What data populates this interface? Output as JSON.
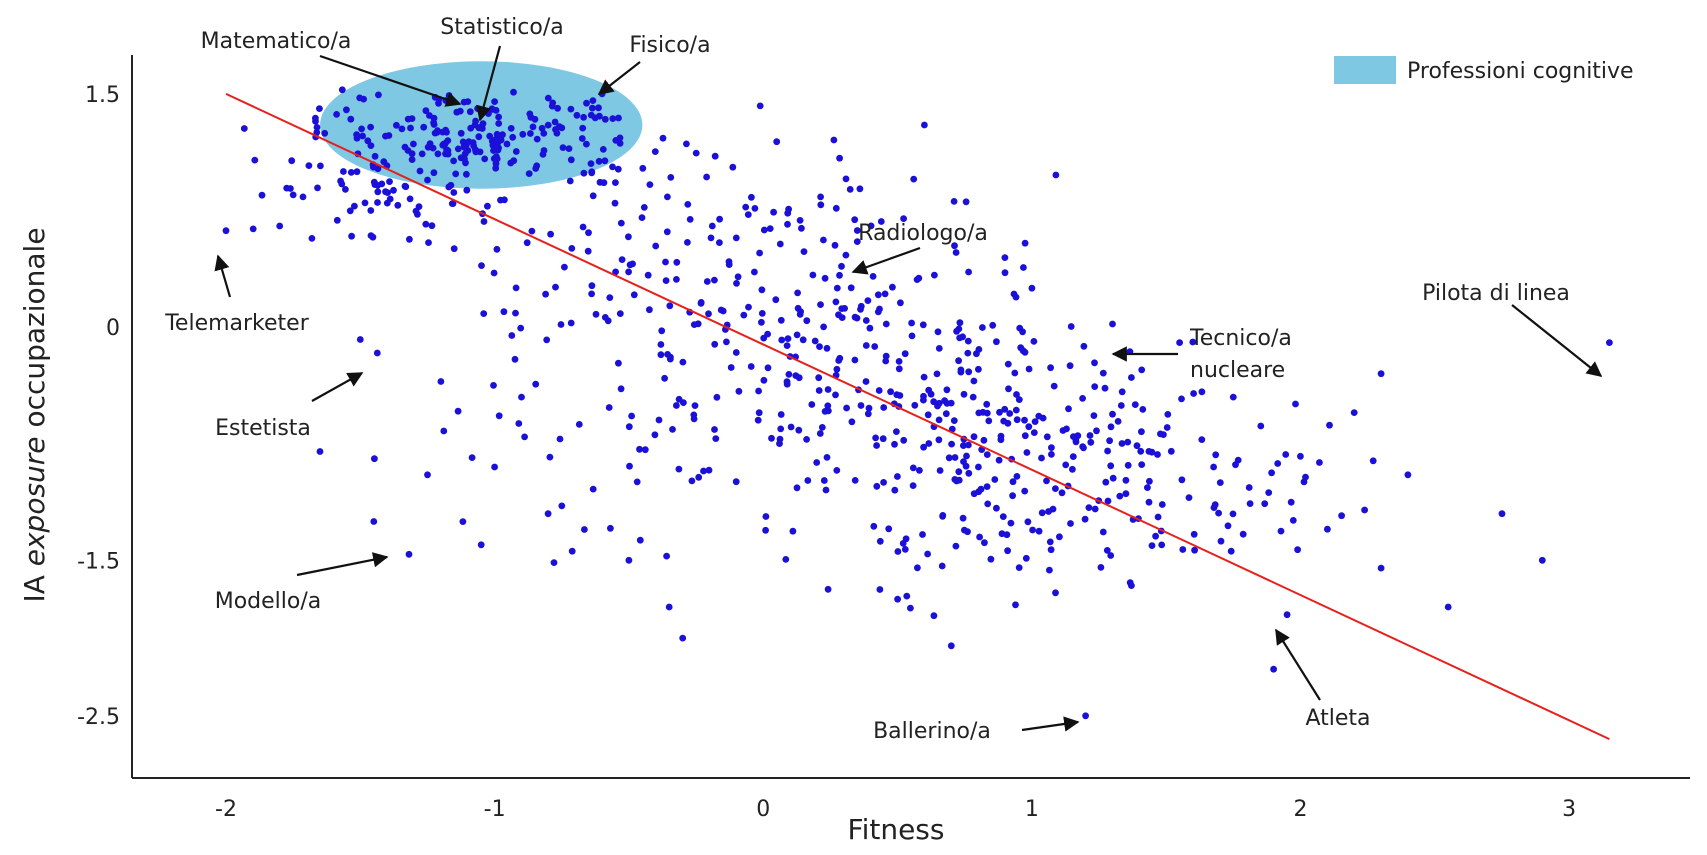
{
  "chart_data": {
    "type": "scatter",
    "title": "",
    "xlabel": "Fitness",
    "ylabel_prefix": "IA ",
    "ylabel_italic": "exposure",
    "ylabel_suffix": " occupazionale",
    "xlim": [
      -2.35,
      3.45
    ],
    "ylim": [
      -2.9,
      1.75
    ],
    "xticks": [
      -2,
      -1,
      0,
      1,
      2,
      3
    ],
    "xtick_labels": [
      "-2",
      "-1",
      "0",
      "1",
      "2",
      "3"
    ],
    "yticks": [
      1.5,
      0,
      -1.5,
      -2.5
    ],
    "ytick_labels": [
      "1.5",
      "0",
      "-1.5",
      "-2.5"
    ],
    "grid": false,
    "legend": {
      "position": "top-right",
      "entries": [
        {
          "label": "Professioni cognitive",
          "color": "#7ec8e3"
        }
      ]
    },
    "colors": {
      "points": "#1a10d8",
      "trend_line": "#e8201c",
      "region": "#7ec8e3",
      "axes": "#222222",
      "arrows": "#111111"
    },
    "highlight_region": {
      "label": "Professioni cognitive",
      "center": [
        -1.05,
        1.3
      ],
      "radius_x": 0.6,
      "radius_y": 0.41
    },
    "trend_line": {
      "x": [
        -2.0,
        3.15
      ],
      "y": [
        1.5,
        -2.65
      ]
    },
    "annotations": [
      {
        "text": "Matematico/a",
        "point": [
          -1.1,
          1.45
        ]
      },
      {
        "text": "Statistico/a",
        "point": [
          -1.0,
          1.45
        ]
      },
      {
        "text": "Fisico/a",
        "point": [
          -0.6,
          1.5
        ]
      },
      {
        "text": "Telemarketer",
        "point": [
          -2.0,
          0.62
        ]
      },
      {
        "text": "Radiologo/a",
        "point": [
          0.35,
          0.55
        ]
      },
      {
        "text": "Pilota di linea",
        "point": [
          3.15,
          -0.1
        ]
      },
      {
        "text": "Tecnico/a\nnucleare",
        "point": [
          1.3,
          0.02
        ]
      },
      {
        "text": "Estetista",
        "point": [
          -1.5,
          -0.08
        ]
      },
      {
        "text": "Modello/a",
        "point": [
          -1.45,
          -1.25
        ]
      },
      {
        "text": "Ballerino/a",
        "point": [
          1.2,
          -2.5
        ]
      },
      {
        "text": "Atleta",
        "point": [
          1.95,
          -1.85
        ]
      }
    ],
    "labeled_points": [
      [
        -2.0,
        0.62
      ],
      [
        -1.5,
        -0.08
      ],
      [
        -1.45,
        -1.25
      ],
      [
        1.2,
        -2.5
      ],
      [
        1.95,
        -1.85
      ],
      [
        3.15,
        -0.1
      ],
      [
        1.3,
        0.02
      ],
      [
        0.35,
        0.55
      ],
      [
        -0.6,
        1.5
      ],
      [
        -1.0,
        1.45
      ],
      [
        -1.1,
        1.45
      ]
    ],
    "outlier_points": [
      [
        -1.75,
        0.85
      ],
      [
        -1.8,
        0.65
      ],
      [
        -1.65,
        -0.8
      ],
      [
        -1.2,
        -0.35
      ],
      [
        -1.25,
        -0.95
      ],
      [
        -1.0,
        -0.9
      ],
      [
        -1.05,
        -1.4
      ],
      [
        -0.9,
        -0.45
      ],
      [
        -0.75,
        -1.15
      ],
      [
        -0.5,
        -1.5
      ],
      [
        -0.35,
        -1.8
      ],
      [
        -0.3,
        -2.0
      ],
      [
        0.5,
        -1.75
      ],
      [
        0.7,
        -2.05
      ],
      [
        0.6,
        1.3
      ],
      [
        1.55,
        -0.1
      ],
      [
        1.75,
        -0.45
      ],
      [
        2.3,
        -0.3
      ],
      [
        2.4,
        -0.95
      ],
      [
        2.75,
        -1.2
      ],
      [
        2.9,
        -1.5
      ],
      [
        2.55,
        -1.8
      ],
      [
        2.2,
        -0.55
      ],
      [
        1.9,
        -2.2
      ],
      [
        2.1,
        -1.3
      ],
      [
        2.3,
        -1.55
      ],
      [
        1.0,
        0.25
      ],
      [
        0.9,
        0.35
      ]
    ],
    "clusters": [
      {
        "cx": -1.1,
        "cy": 1.22,
        "sx": 0.3,
        "sy": 0.16,
        "n": 190
      },
      {
        "cx": -0.62,
        "cy": 1.2,
        "sx": 0.06,
        "sy": 0.18,
        "n": 18
      },
      {
        "cx": -0.25,
        "cy": 0.35,
        "sx": 0.45,
        "sy": 0.45,
        "n": 150
      },
      {
        "cx": 0.35,
        "cy": -0.25,
        "sx": 0.4,
        "sy": 0.48,
        "n": 200
      },
      {
        "cx": 0.95,
        "cy": -0.85,
        "sx": 0.35,
        "sy": 0.42,
        "n": 160
      },
      {
        "cx": 1.55,
        "cy": -1.05,
        "sx": 0.3,
        "sy": 0.32,
        "n": 75
      },
      {
        "cx": -1.45,
        "cy": 0.8,
        "sx": 0.2,
        "sy": 0.15,
        "n": 45
      },
      {
        "cx": -0.6,
        "cy": -0.75,
        "sx": 0.35,
        "sy": 0.45,
        "n": 45
      }
    ]
  }
}
